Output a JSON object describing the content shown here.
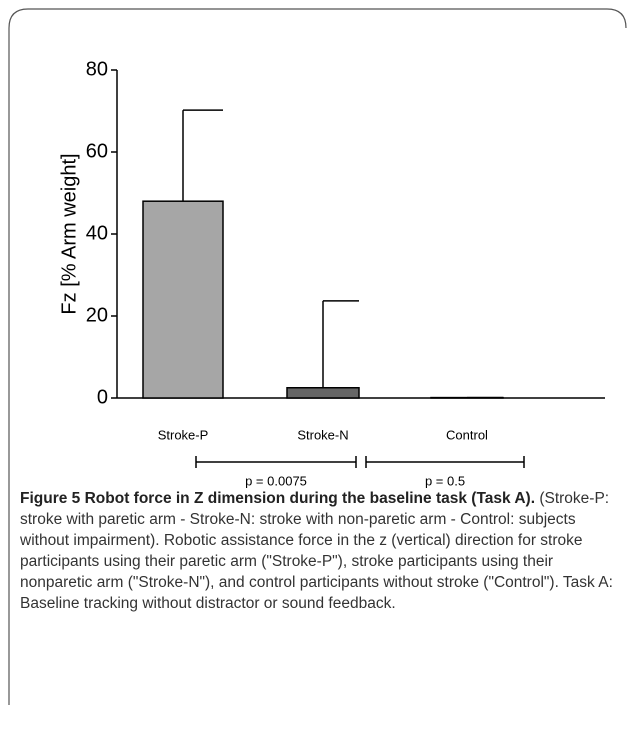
{
  "chart_data": {
    "type": "bar",
    "ylabel": "Fz [% Arm weight]",
    "categories": [
      "Stroke-P",
      "Stroke-N",
      "Control"
    ],
    "series": [
      {
        "name": null,
        "values": [
          48,
          2.5,
          0.1
        ],
        "errors": [
          22.2,
          21.2,
          0
        ],
        "colors": [
          "#a6a6a6",
          "#666666",
          "#666666"
        ]
      }
    ],
    "ylim": [
      0,
      80
    ],
    "yticks": [
      0,
      20,
      40,
      60,
      80
    ],
    "annotations": [
      {
        "text": "p = 0.0075",
        "from": 0,
        "to": 1
      },
      {
        "text": "p = 0.5",
        "from": 1,
        "to": 2
      }
    ]
  },
  "caption": {
    "title": "Figure 5 Robot force in Z dimension during the baseline task (Task A).",
    "body": "(Stroke-P: stroke with paretic arm - Stroke-N: stroke with non-paretic arm - Control: subjects without impairment). Robotic assistance force in the z (vertical) direction for stroke participants using their paretic arm (\"Stroke-P\"), stroke participants using their nonparetic arm (\"Stroke-N\"), and control participants without stroke (\"Control\"). Task A: Baseline tracking without distractor or sound feedback."
  }
}
